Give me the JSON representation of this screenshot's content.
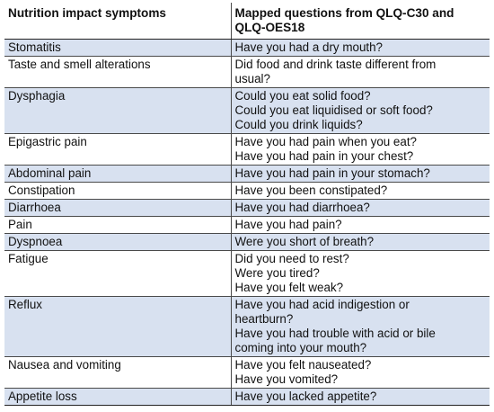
{
  "header": {
    "col1": "Nutrition impact symptoms",
    "col2_line1": "Mapped questions from QLQ-C30 and",
    "col2_line2": "QLQ-OES18"
  },
  "rows": [
    {
      "symptom": "Stomatitis",
      "shaded": true,
      "lines": [
        "Have you had a dry mouth?"
      ]
    },
    {
      "symptom": "Taste and smell alterations",
      "shaded": false,
      "lines": [
        "Did food and drink taste different from",
        "usual?"
      ]
    },
    {
      "symptom": "Dysphagia",
      "shaded": true,
      "lines": [
        "Could you eat solid food?",
        "Could you eat liquidised or soft food?",
        "Could you drink liquids?"
      ]
    },
    {
      "symptom": "Epigastric pain",
      "shaded": false,
      "lines": [
        "Have you had pain when you eat?",
        "Have you had pain in your chest?"
      ]
    },
    {
      "symptom": "Abdominal pain",
      "shaded": true,
      "lines": [
        "Have you had pain in your stomach?"
      ]
    },
    {
      "symptom": "Constipation",
      "shaded": false,
      "lines": [
        "Have you been constipated?"
      ]
    },
    {
      "symptom": "Diarrhoea",
      "shaded": true,
      "lines": [
        "Have you had diarrhoea?"
      ]
    },
    {
      "symptom": "Pain",
      "shaded": false,
      "lines": [
        "Have you had pain?"
      ]
    },
    {
      "symptom": "Dyspnoea",
      "shaded": true,
      "lines": [
        "Were you short of breath?"
      ]
    },
    {
      "symptom": "Fatigue",
      "shaded": false,
      "lines": [
        "Did you need to rest?",
        "Were you tired?",
        "Have you felt weak?"
      ]
    },
    {
      "symptom": "Reflux",
      "shaded": true,
      "lines": [
        "Have you had acid indigestion or",
        "heartburn?",
        "Have you had trouble with acid or bile",
        "coming into your mouth?"
      ]
    },
    {
      "symptom": "Nausea and vomiting",
      "shaded": false,
      "lines": [
        "Have you felt nauseated?",
        "Have you vomited?"
      ]
    },
    {
      "symptom": "Appetite loss",
      "shaded": true,
      "lines": [
        "Have you lacked appetite?"
      ]
    }
  ]
}
